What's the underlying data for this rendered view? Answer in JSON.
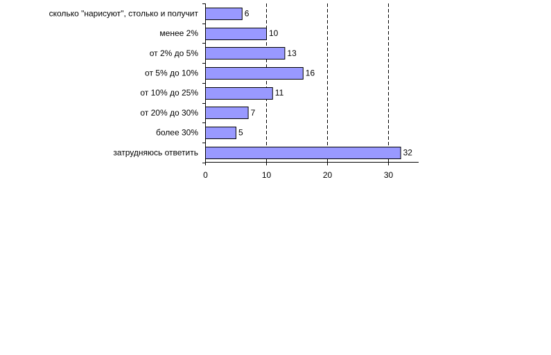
{
  "chart_data": {
    "type": "bar",
    "orientation": "horizontal",
    "categories": [
      "сколько \"нарисуют\", столько и получит",
      "менее 2%",
      "от 2% до 5%",
      "от 5% до 10%",
      "от 10% до 25%",
      "от 20% до 30%",
      "более 30%",
      "затрудняюсь ответить"
    ],
    "values": [
      6,
      10,
      13,
      16,
      11,
      7,
      5,
      32
    ],
    "title": "",
    "xlabel": "",
    "ylabel": "",
    "xlim": [
      0,
      35
    ],
    "xticks": [
      0,
      10,
      20,
      30
    ],
    "gridlines": "vertical-dashed",
    "legend": "none",
    "data_labels": true,
    "bar_color": "#9999ff",
    "bar_outline_color": "#000000"
  }
}
